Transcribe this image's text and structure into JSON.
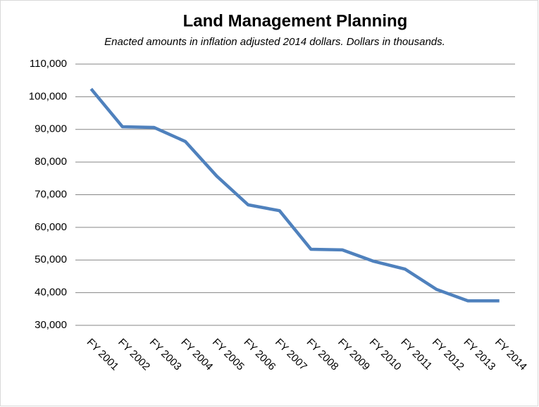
{
  "chart_data": {
    "type": "line",
    "title": "Land Management Planning",
    "subtitle": "Enacted amounts in inflation adjusted 2014 dollars. Dollars in thousands.",
    "categories": [
      "FY 2001",
      "FY 2002",
      "FY 2003",
      "FY 2004",
      "FY 2005",
      "FY 2006",
      "FY 2007",
      "FY 2008",
      "FY 2009",
      "FY 2010",
      "FY 2011",
      "FY 2012",
      "FY 2013",
      "FY 2014"
    ],
    "series": [
      {
        "name": "Land Management Planning",
        "color": "#4f81bd",
        "values": [
          102400,
          90800,
          90600,
          86300,
          75700,
          66900,
          65100,
          53300,
          53100,
          49600,
          47200,
          41000,
          37500,
          37500
        ]
      }
    ],
    "ylim": [
      30000,
      110000
    ],
    "yticks": [
      {
        "value": 30000,
        "label": "30,000"
      },
      {
        "value": 40000,
        "label": "40,000"
      },
      {
        "value": 50000,
        "label": "50,000"
      },
      {
        "value": 60000,
        "label": "60,000"
      },
      {
        "value": 70000,
        "label": "70,000"
      },
      {
        "value": 80000,
        "label": "80,000"
      },
      {
        "value": 90000,
        "label": "90,000"
      },
      {
        "value": 100000,
        "label": "100,000"
      },
      {
        "value": 110000,
        "label": "110,000"
      }
    ],
    "grid": true
  }
}
